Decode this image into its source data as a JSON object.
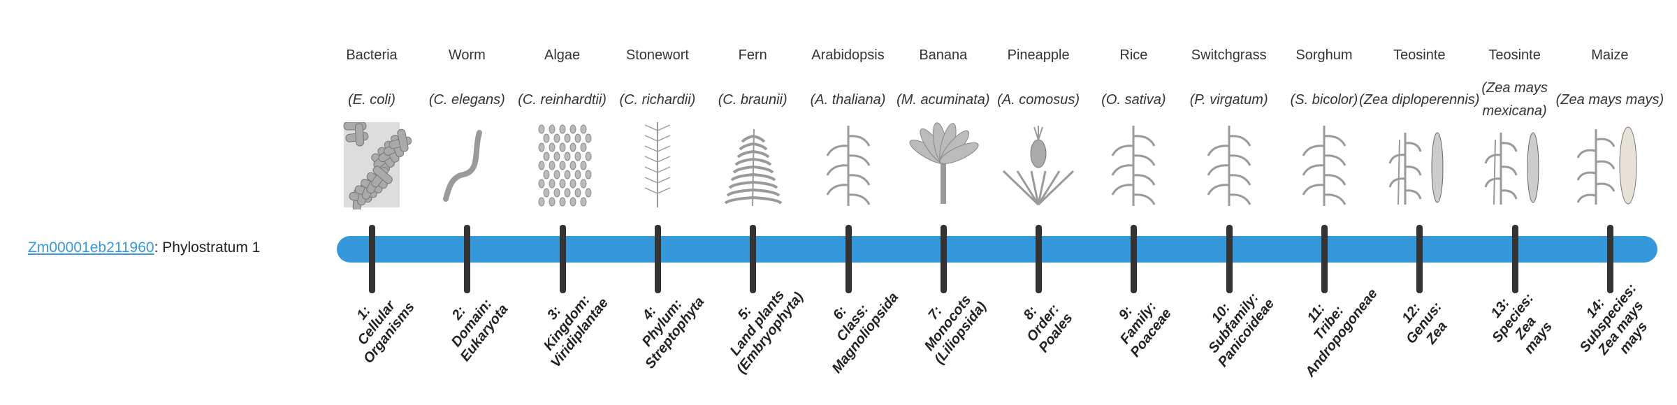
{
  "gene": {
    "id": "Zm00001eb211960",
    "separator": ":",
    "stratum": "Phylostratum 1"
  },
  "colors": {
    "bar": "#3598db",
    "tick": "#333333",
    "link": "#3598db",
    "illustration": "#9a9a9a"
  },
  "taxa": [
    {
      "common": "Bacteria",
      "scientific": "(E. coli)",
      "icon": "bacteria-icon",
      "stratum": [
        "1:",
        "Cellular",
        "Organisms"
      ]
    },
    {
      "common": "Worm",
      "scientific": "(C. elegans)",
      "icon": "worm-icon",
      "stratum": [
        "2:",
        "Domain:",
        "Eukaryota"
      ]
    },
    {
      "common": "Algae",
      "scientific": "(C. reinhardtii)",
      "icon": "algae-icon",
      "stratum": [
        "3:",
        "Kingdom:",
        "Viridiplantae"
      ]
    },
    {
      "common": "Stonewort",
      "scientific": "(C. richardii)",
      "icon": "stonewort-icon",
      "stratum": [
        "4:",
        "Phylum:",
        "Streptophyta"
      ]
    },
    {
      "common": "Fern",
      "scientific": "(C. braunii)",
      "icon": "fern-icon",
      "stratum": [
        "5:",
        "Land plants",
        "(Embryophyta)"
      ]
    },
    {
      "common": "Arabidopsis",
      "scientific": "(A. thaliana)",
      "icon": "arabidopsis-icon",
      "stratum": [
        "6:",
        "Class:",
        "Magnoliopsida"
      ]
    },
    {
      "common": "Banana",
      "scientific": "(M. acuminata)",
      "icon": "banana-plant-icon",
      "stratum": [
        "7:",
        "Monocots",
        "(Liliopsida)"
      ]
    },
    {
      "common": "Pineapple",
      "scientific": "(A. comosus)",
      "icon": "pineapple-icon",
      "stratum": [
        "8:",
        "Order:",
        "Poales"
      ]
    },
    {
      "common": "Rice",
      "scientific": "(O. sativa)",
      "icon": "rice-icon",
      "stratum": [
        "9:",
        "Family:",
        "Poaceae"
      ]
    },
    {
      "common": "Switchgrass",
      "scientific": "(P. virgatum)",
      "icon": "switchgrass-icon",
      "stratum": [
        "10:",
        "Subfamily:",
        "Panicoideae"
      ]
    },
    {
      "common": "Sorghum",
      "scientific": "(S. bicolor)",
      "icon": "sorghum-icon",
      "stratum": [
        "11:",
        "Tribe:",
        "Andropogoneae"
      ]
    },
    {
      "common": "Teosinte",
      "scientific": "(Zea diploperennis)",
      "icon": "teosinte-icon",
      "stratum": [
        "12:",
        "Genus:",
        "Zea"
      ]
    },
    {
      "common": "Teosinte",
      "scientific": "(Zea mays mexicana)",
      "icon": "teosinte-icon",
      "stratum": [
        "13:",
        "Species:",
        "Zea",
        "mays"
      ]
    },
    {
      "common": "Maize",
      "scientific": "(Zea mays mays)",
      "icon": "maize-icon",
      "stratum": [
        "14:",
        "Subspecies:",
        "Zea mays",
        "mays"
      ]
    }
  ]
}
